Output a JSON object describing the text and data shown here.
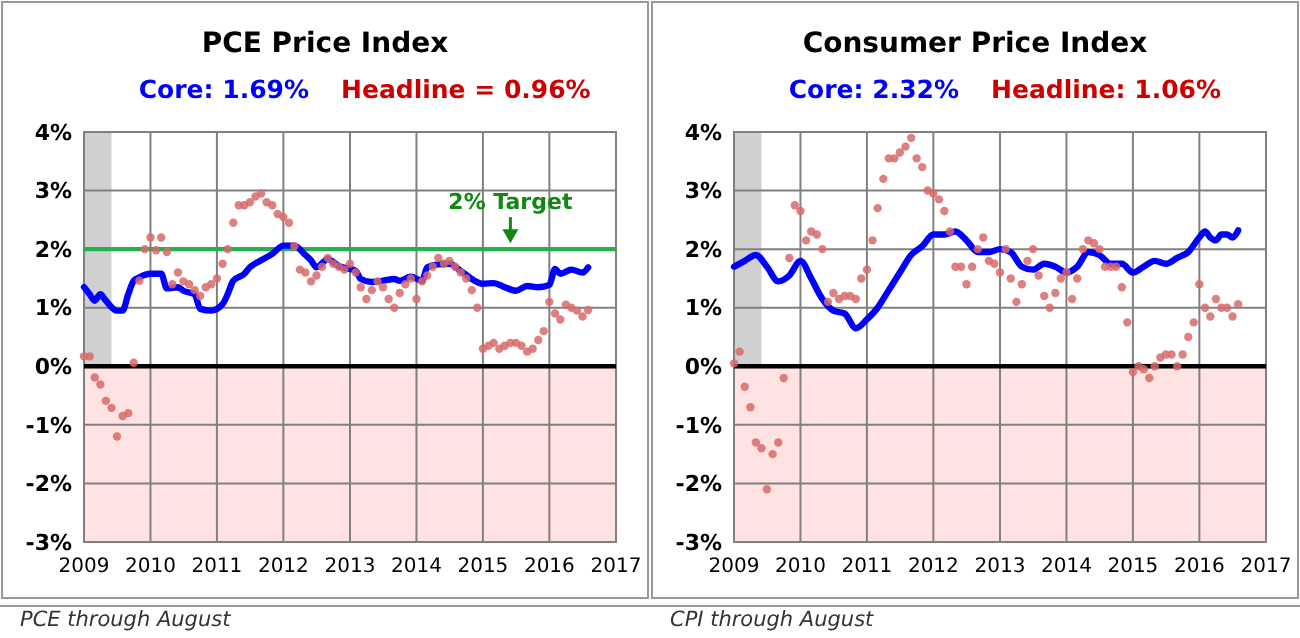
{
  "chart_data": [
    {
      "type": "line",
      "title": "PCE Price Index",
      "annotations": [
        "Core: 1.69%",
        "Headline = 0.96%",
        "PCE through August"
      ],
      "xlim": [
        "2009-01",
        "2017-01"
      ],
      "xticks": [
        "2009",
        "2010",
        "2011",
        "2012",
        "2013",
        "2014",
        "2015",
        "2016",
        "2017"
      ],
      "ylim": [
        -3,
        4
      ],
      "yticks": [
        {
          "value": -3,
          "label": "-3%"
        },
        {
          "value": -2,
          "label": "-2%"
        },
        {
          "value": -1,
          "label": "-1%"
        },
        {
          "value": 0,
          "label": "0%"
        },
        {
          "value": 1,
          "label": "1%"
        },
        {
          "value": 2,
          "label": "2%"
        },
        {
          "value": 3,
          "label": "3%"
        },
        {
          "value": 4,
          "label": "4%"
        }
      ],
      "grid": true,
      "bands": [
        {
          "axis": "x",
          "from": "2009-01",
          "to": "2009-06",
          "color": "#d0d0d0"
        },
        {
          "axis": "y",
          "from": -3,
          "to": 0,
          "color": "#ffe3e3"
        }
      ],
      "ref_lines": [
        {
          "axis": "y",
          "value": 0,
          "color": "#000000"
        },
        {
          "axis": "y",
          "value": 2,
          "label": "2% Target",
          "color": "#22b14c"
        }
      ],
      "series": [
        {
          "type": "line",
          "color": "#0000ff",
          "x": [
            "2009-01",
            "2009-02",
            "2009-03",
            "2009-04",
            "2009-05",
            "2009-07",
            "2009-08",
            "2009-09",
            "2009-10",
            "2009-11",
            "2010-01",
            "2010-03",
            "2010-04",
            "2010-06",
            "2010-07",
            "2010-09",
            "2010-10",
            "2010-12",
            "2011-02",
            "2011-03",
            "2011-04",
            "2011-06",
            "2011-07",
            "2011-09",
            "2011-11",
            "2012-01",
            "2012-03",
            "2012-05",
            "2012-06",
            "2012-07",
            "2012-09",
            "2012-11",
            "2013-02",
            "2013-03",
            "2013-05",
            "2013-07",
            "2013-09",
            "2013-10",
            "2013-12",
            "2014-02",
            "2014-03",
            "2014-05",
            "2014-07",
            "2014-09",
            "2014-11",
            "2015-01",
            "2015-03",
            "2015-05",
            "2015-07",
            "2015-09",
            "2015-11",
            "2016-01",
            "2016-02",
            "2016-03",
            "2016-05",
            "2016-07",
            "2016-08"
          ],
          "values": [
            1.35,
            1.23,
            1.12,
            1.23,
            1.12,
            0.95,
            0.95,
            1.23,
            1.46,
            1.52,
            1.58,
            1.58,
            1.33,
            1.35,
            1.29,
            1.23,
            0.98,
            0.95,
            1.06,
            1.23,
            1.46,
            1.58,
            1.69,
            1.81,
            1.92,
            2.06,
            2.06,
            1.9,
            1.81,
            1.69,
            1.83,
            1.71,
            1.63,
            1.49,
            1.44,
            1.46,
            1.49,
            1.46,
            1.53,
            1.46,
            1.69,
            1.74,
            1.75,
            1.63,
            1.49,
            1.41,
            1.42,
            1.35,
            1.29,
            1.37,
            1.35,
            1.39,
            1.66,
            1.58,
            1.65,
            1.6,
            1.69
          ]
        },
        {
          "type": "scatter",
          "color": "#d86a6a",
          "x": [
            "2009-01",
            "2009-02",
            "2009-03",
            "2009-04",
            "2009-05",
            "2009-06",
            "2009-07",
            "2009-08",
            "2009-09",
            "2009-10",
            "2009-11",
            "2009-12",
            "2010-01",
            "2010-02",
            "2010-03",
            "2010-04",
            "2010-05",
            "2010-06",
            "2010-07",
            "2010-08",
            "2010-09",
            "2010-10",
            "2010-11",
            "2010-12",
            "2011-01",
            "2011-02",
            "2011-03",
            "2011-04",
            "2011-05",
            "2011-06",
            "2011-07",
            "2011-08",
            "2011-09",
            "2011-10",
            "2011-11",
            "2011-12",
            "2012-01",
            "2012-02",
            "2012-03",
            "2012-04",
            "2012-05",
            "2012-06",
            "2012-07",
            "2012-08",
            "2012-09",
            "2012-10",
            "2012-11",
            "2012-12",
            "2013-01",
            "2013-02",
            "2013-03",
            "2013-04",
            "2013-05",
            "2013-06",
            "2013-07",
            "2013-08",
            "2013-09",
            "2013-10",
            "2013-11",
            "2013-12",
            "2014-01",
            "2014-02",
            "2014-03",
            "2014-04",
            "2014-05",
            "2014-06",
            "2014-07",
            "2014-08",
            "2014-09",
            "2014-10",
            "2014-11",
            "2014-12",
            "2015-01",
            "2015-02",
            "2015-03",
            "2015-04",
            "2015-05",
            "2015-06",
            "2015-07",
            "2015-08",
            "2015-09",
            "2015-10",
            "2015-11",
            "2015-12",
            "2016-01",
            "2016-02",
            "2016-03",
            "2016-04",
            "2016-05",
            "2016-06",
            "2016-07",
            "2016-08"
          ],
          "values": [
            0.17,
            0.17,
            -0.19,
            -0.31,
            -0.59,
            -0.71,
            -1.2,
            -0.85,
            -0.8,
            0.06,
            1.46,
            2.0,
            2.2,
            1.98,
            2.2,
            1.95,
            1.4,
            1.6,
            1.45,
            1.4,
            1.3,
            1.2,
            1.35,
            1.4,
            1.5,
            1.75,
            2.0,
            2.45,
            2.75,
            2.75,
            2.8,
            2.9,
            2.95,
            2.8,
            2.75,
            2.6,
            2.55,
            2.45,
            2.05,
            1.65,
            1.6,
            1.45,
            1.55,
            1.7,
            1.85,
            1.75,
            1.7,
            1.65,
            1.75,
            1.6,
            1.35,
            1.15,
            1.3,
            1.45,
            1.35,
            1.15,
            1.0,
            1.25,
            1.4,
            1.5,
            1.15,
            1.45,
            1.55,
            1.7,
            1.85,
            1.75,
            1.8,
            1.7,
            1.6,
            1.5,
            1.3,
            1.0,
            0.3,
            0.35,
            0.4,
            0.3,
            0.35,
            0.4,
            0.4,
            0.35,
            0.25,
            0.3,
            0.45,
            0.6,
            1.1,
            0.9,
            0.8,
            1.05,
            1.0,
            0.95,
            0.85,
            0.96
          ]
        }
      ]
    },
    {
      "type": "line",
      "title": "Consumer Price Index",
      "annotations": [
        "Core: 2.32%",
        "Headline: 1.06%",
        "CPI through August"
      ],
      "xlim": [
        "2009-01",
        "2017-01"
      ],
      "xticks": [
        "2009",
        "2010",
        "2011",
        "2012",
        "2013",
        "2014",
        "2015",
        "2016",
        "2017"
      ],
      "ylim": [
        -3,
        4
      ],
      "yticks": [
        {
          "value": -3,
          "label": "-3%"
        },
        {
          "value": -2,
          "label": "-2%"
        },
        {
          "value": -1,
          "label": "-1%"
        },
        {
          "value": 0,
          "label": "0%"
        },
        {
          "value": 1,
          "label": "1%"
        },
        {
          "value": 2,
          "label": "2%"
        },
        {
          "value": 3,
          "label": "3%"
        },
        {
          "value": 4,
          "label": "4%"
        }
      ],
      "grid": true,
      "bands": [
        {
          "axis": "x",
          "from": "2009-01",
          "to": "2009-06",
          "color": "#d0d0d0"
        },
        {
          "axis": "y",
          "from": -3,
          "to": 0,
          "color": "#ffe3e3"
        }
      ],
      "ref_lines": [
        {
          "axis": "y",
          "value": 0,
          "color": "#000000"
        }
      ],
      "series": [
        {
          "type": "line",
          "color": "#0000ff",
          "x": [
            "2009-01",
            "2009-03",
            "2009-05",
            "2009-07",
            "2009-09",
            "2009-11",
            "2010-01",
            "2010-03",
            "2010-05",
            "2010-07",
            "2010-09",
            "2010-11",
            "2011-01",
            "2011-03",
            "2011-05",
            "2011-07",
            "2011-09",
            "2011-11",
            "2012-01",
            "2012-03",
            "2012-05",
            "2012-07",
            "2012-09",
            "2012-11",
            "2013-01",
            "2013-03",
            "2013-05",
            "2013-07",
            "2013-09",
            "2013-11",
            "2014-01",
            "2014-03",
            "2014-05",
            "2014-07",
            "2014-09",
            "2014-11",
            "2015-01",
            "2015-03",
            "2015-05",
            "2015-07",
            "2015-09",
            "2015-11",
            "2016-01",
            "2016-02",
            "2016-03",
            "2016-04",
            "2016-05",
            "2016-06",
            "2016-07",
            "2016-08"
          ],
          "values": [
            1.7,
            1.8,
            1.9,
            1.7,
            1.45,
            1.55,
            1.8,
            1.5,
            1.15,
            0.95,
            0.9,
            0.65,
            0.8,
            1.0,
            1.3,
            1.6,
            1.9,
            2.05,
            2.25,
            2.25,
            2.3,
            2.15,
            1.95,
            1.95,
            2.0,
            1.95,
            1.7,
            1.65,
            1.75,
            1.7,
            1.6,
            1.7,
            1.95,
            1.9,
            1.75,
            1.75,
            1.6,
            1.7,
            1.8,
            1.75,
            1.85,
            1.95,
            2.2,
            2.3,
            2.2,
            2.15,
            2.25,
            2.25,
            2.2,
            2.32
          ]
        },
        {
          "type": "scatter",
          "color": "#d86a6a",
          "x": [
            "2009-01",
            "2009-02",
            "2009-03",
            "2009-04",
            "2009-05",
            "2009-06",
            "2009-07",
            "2009-08",
            "2009-09",
            "2009-10",
            "2009-11",
            "2009-12",
            "2010-01",
            "2010-02",
            "2010-03",
            "2010-04",
            "2010-05",
            "2010-06",
            "2010-07",
            "2010-08",
            "2010-09",
            "2010-10",
            "2010-11",
            "2010-12",
            "2011-01",
            "2011-02",
            "2011-03",
            "2011-04",
            "2011-05",
            "2011-06",
            "2011-07",
            "2011-08",
            "2011-09",
            "2011-10",
            "2011-11",
            "2011-12",
            "2012-01",
            "2012-02",
            "2012-03",
            "2012-04",
            "2012-05",
            "2012-06",
            "2012-07",
            "2012-08",
            "2012-09",
            "2012-10",
            "2012-11",
            "2012-12",
            "2013-01",
            "2013-02",
            "2013-03",
            "2013-04",
            "2013-05",
            "2013-06",
            "2013-07",
            "2013-08",
            "2013-09",
            "2013-10",
            "2013-11",
            "2013-12",
            "2014-01",
            "2014-02",
            "2014-03",
            "2014-04",
            "2014-05",
            "2014-06",
            "2014-07",
            "2014-08",
            "2014-09",
            "2014-10",
            "2014-11",
            "2014-12",
            "2015-01",
            "2015-02",
            "2015-03",
            "2015-04",
            "2015-05",
            "2015-06",
            "2015-07",
            "2015-08",
            "2015-09",
            "2015-10",
            "2015-11",
            "2015-12",
            "2016-01",
            "2016-02",
            "2016-03",
            "2016-04",
            "2016-05",
            "2016-06",
            "2016-07",
            "2016-08"
          ],
          "values": [
            0.05,
            0.25,
            -0.35,
            -0.7,
            -1.3,
            -1.4,
            -2.1,
            -1.5,
            -1.3,
            -0.2,
            1.85,
            2.75,
            2.65,
            2.15,
            2.3,
            2.25,
            2.0,
            1.1,
            1.25,
            1.15,
            1.2,
            1.2,
            1.15,
            1.5,
            1.65,
            2.15,
            2.7,
            3.2,
            3.55,
            3.55,
            3.65,
            3.75,
            3.9,
            3.55,
            3.4,
            3.0,
            2.95,
            2.85,
            2.65,
            2.3,
            1.7,
            1.7,
            1.4,
            1.7,
            2.0,
            2.2,
            1.8,
            1.75,
            1.6,
            2.0,
            1.5,
            1.1,
            1.4,
            1.8,
            2.0,
            1.55,
            1.2,
            1.0,
            1.25,
            1.5,
            1.6,
            1.15,
            1.5,
            2.0,
            2.15,
            2.1,
            2.0,
            1.7,
            1.7,
            1.7,
            1.35,
            0.75,
            -0.1,
            0.0,
            -0.05,
            -0.2,
            0.0,
            0.15,
            0.2,
            0.2,
            0.0,
            0.2,
            0.5,
            0.75,
            1.4,
            1.0,
            0.85,
            1.15,
            1.0,
            1.0,
            0.85,
            1.06
          ]
        }
      ]
    }
  ]
}
